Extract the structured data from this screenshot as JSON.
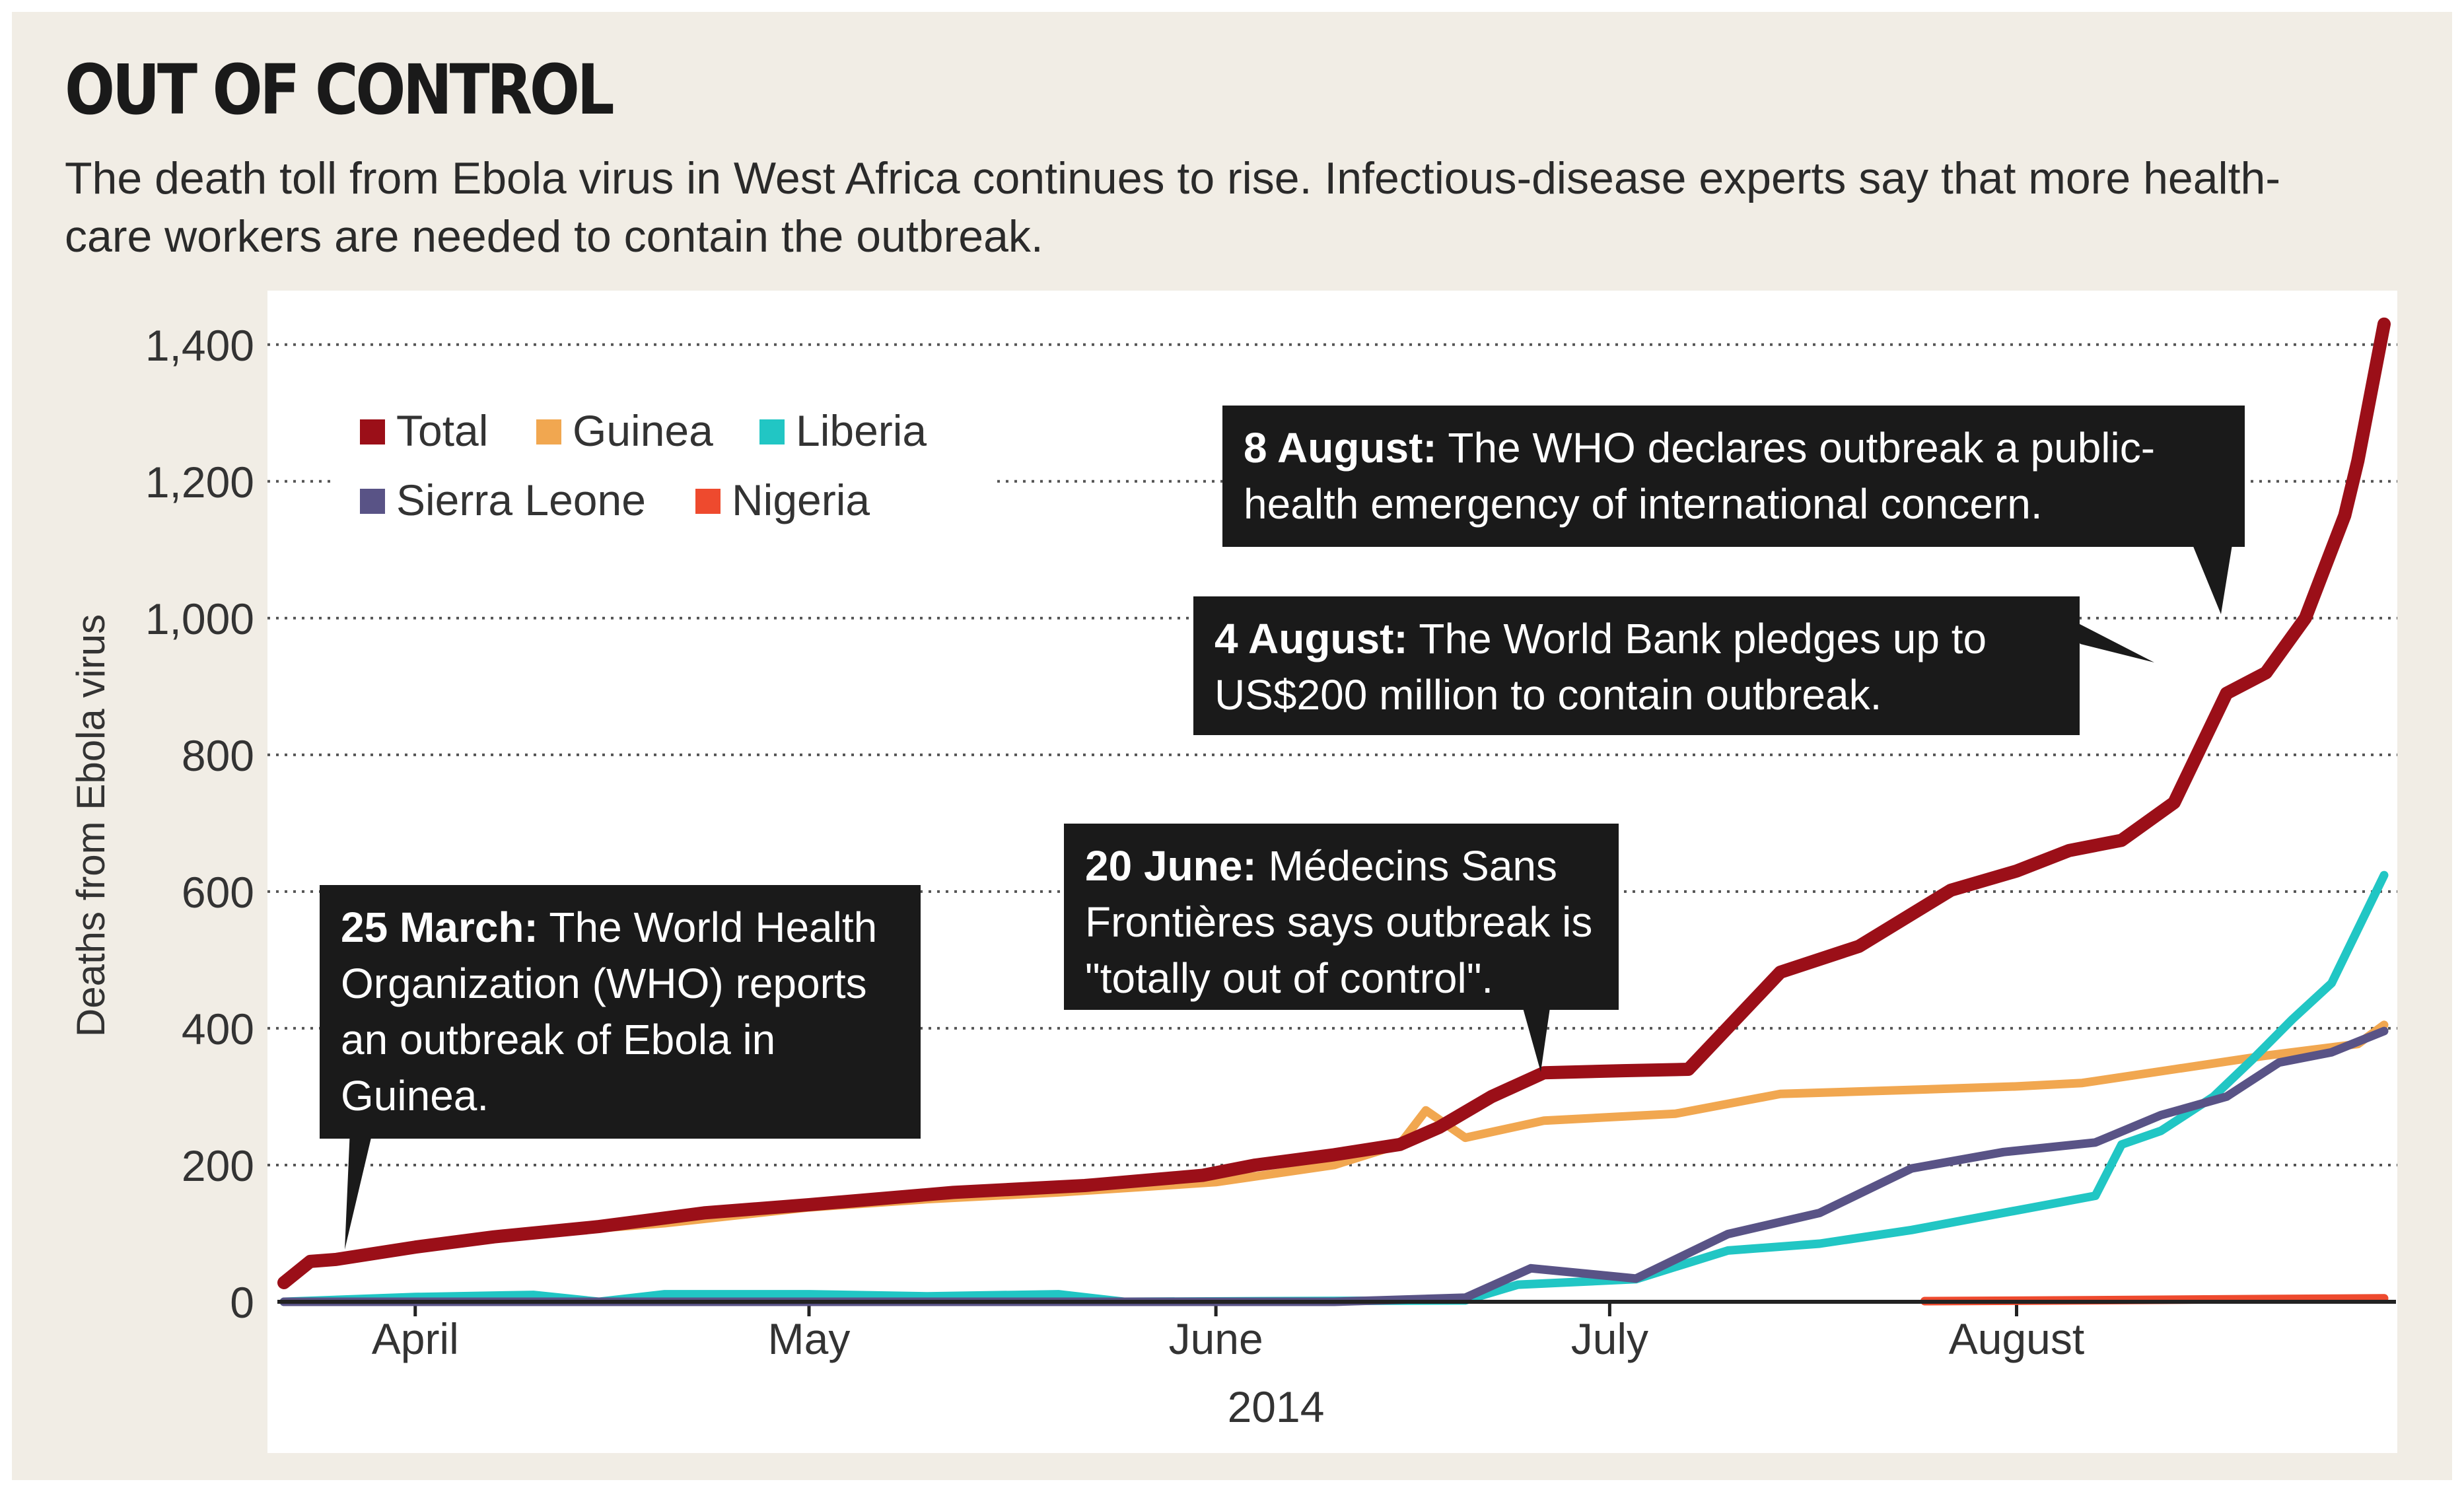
{
  "header": {
    "title": "OUT OF CONTROL",
    "subtitle": "The death toll from Ebola virus in West Africa continues to rise. Infectious-disease experts say that more health-care workers are needed to contain the outbreak."
  },
  "annotations": [
    {
      "date_label": "25 March:",
      "text": "The World Health Organization (WHO) reports an outbreak of Ebola in Guinea."
    },
    {
      "date_label": "20 June:",
      "text": "Médecins Sans Frontières says outbreak is \"totally out of control\"."
    },
    {
      "date_label": "4 August:",
      "text": "The World Bank pledges up to US$200 million to contain outbreak."
    },
    {
      "date_label": "8 August:",
      "text": "The WHO declares outbreak a public-health emergency of international concern."
    }
  ],
  "chart_data": {
    "type": "line",
    "title": "OUT OF CONTROL",
    "ylabel": "Deaths from Ebola virus",
    "xlabel": "2014",
    "ylim": [
      0,
      1450
    ],
    "xlim": [
      "2014-03-22",
      "2014-08-29"
    ],
    "yticks": [
      0,
      200,
      400,
      600,
      800,
      1000,
      1200,
      1400
    ],
    "ytick_labels": [
      "0",
      "200",
      "400",
      "600",
      "800",
      "1,000",
      "1,200",
      "1,400"
    ],
    "xticks": [
      "2014-04-01",
      "2014-05-01",
      "2014-06-01",
      "2014-07-01",
      "2014-08-01"
    ],
    "xtick_labels": [
      "April",
      "May",
      "June",
      "July",
      "August"
    ],
    "grid": "horizontal dotted",
    "legend_placement": "top-left",
    "series": [
      {
        "name": "Total",
        "color": "#9b0f18",
        "points": [
          [
            "2014-03-22",
            28
          ],
          [
            "2014-03-24",
            59
          ],
          [
            "2014-03-26",
            62
          ],
          [
            "2014-04-01",
            80
          ],
          [
            "2014-04-07",
            95
          ],
          [
            "2014-04-15",
            110
          ],
          [
            "2014-04-23",
            130
          ],
          [
            "2014-05-01",
            142
          ],
          [
            "2014-05-12",
            160
          ],
          [
            "2014-05-22",
            170
          ],
          [
            "2014-05-31",
            185
          ],
          [
            "2014-06-04",
            200
          ],
          [
            "2014-06-10",
            215
          ],
          [
            "2014-06-15",
            230
          ],
          [
            "2014-06-18",
            255
          ],
          [
            "2014-06-22",
            300
          ],
          [
            "2014-06-26",
            335
          ],
          [
            "2014-07-02",
            338
          ],
          [
            "2014-07-07",
            340
          ],
          [
            "2014-07-14",
            482
          ],
          [
            "2014-07-20",
            520
          ],
          [
            "2014-07-27",
            602
          ],
          [
            "2014-08-01",
            630
          ],
          [
            "2014-08-05",
            660
          ],
          [
            "2014-08-09",
            675
          ],
          [
            "2014-08-13",
            730
          ],
          [
            "2014-08-17",
            890
          ],
          [
            "2014-08-20",
            920
          ],
          [
            "2014-08-23",
            1000
          ],
          [
            "2014-08-26",
            1150
          ],
          [
            "2014-08-27",
            1230
          ],
          [
            "2014-08-29",
            1430
          ]
        ]
      },
      {
        "name": "Guinea",
        "color": "#f1a750",
        "points": [
          [
            "2014-03-22",
            28
          ],
          [
            "2014-03-24",
            59
          ],
          [
            "2014-04-01",
            80
          ],
          [
            "2014-04-10",
            100
          ],
          [
            "2014-04-20",
            115
          ],
          [
            "2014-05-01",
            138
          ],
          [
            "2014-05-10",
            150
          ],
          [
            "2014-05-20",
            160
          ],
          [
            "2014-06-01",
            175
          ],
          [
            "2014-06-10",
            200
          ],
          [
            "2014-06-15",
            230
          ],
          [
            "2014-06-17",
            280
          ],
          [
            "2014-06-20",
            240
          ],
          [
            "2014-06-26",
            265
          ],
          [
            "2014-07-06",
            275
          ],
          [
            "2014-07-14",
            304
          ],
          [
            "2014-07-24",
            310
          ],
          [
            "2014-08-01",
            315
          ],
          [
            "2014-08-06",
            320
          ],
          [
            "2014-08-13",
            340
          ],
          [
            "2014-08-20",
            360
          ],
          [
            "2014-08-27",
            377
          ],
          [
            "2014-08-29",
            405
          ]
        ]
      },
      {
        "name": "Liberia",
        "color": "#21c6c4",
        "points": [
          [
            "2014-03-22",
            0
          ],
          [
            "2014-04-01",
            7
          ],
          [
            "2014-04-10",
            10
          ],
          [
            "2014-04-15",
            0
          ],
          [
            "2014-04-20",
            11
          ],
          [
            "2014-05-01",
            11
          ],
          [
            "2014-05-10",
            8
          ],
          [
            "2014-05-20",
            11
          ],
          [
            "2014-05-25",
            0
          ],
          [
            "2014-06-20",
            2
          ],
          [
            "2014-06-24",
            25
          ],
          [
            "2014-07-03",
            33
          ],
          [
            "2014-07-10",
            75
          ],
          [
            "2014-07-17",
            85
          ],
          [
            "2014-07-24",
            105
          ],
          [
            "2014-07-31",
            130
          ],
          [
            "2014-08-07",
            155
          ],
          [
            "2014-08-09",
            230
          ],
          [
            "2014-08-12",
            250
          ],
          [
            "2014-08-16",
            300
          ],
          [
            "2014-08-19",
            355
          ],
          [
            "2014-08-22",
            413
          ],
          [
            "2014-08-25",
            466
          ],
          [
            "2014-08-29",
            624
          ]
        ]
      },
      {
        "name": "Sierra Leone",
        "color": "#595386",
        "points": [
          [
            "2014-03-22",
            0
          ],
          [
            "2014-06-10",
            0
          ],
          [
            "2014-06-20",
            6
          ],
          [
            "2014-06-25",
            49
          ],
          [
            "2014-07-03",
            34
          ],
          [
            "2014-07-10",
            99
          ],
          [
            "2014-07-17",
            130
          ],
          [
            "2014-07-24",
            195
          ],
          [
            "2014-07-31",
            219
          ],
          [
            "2014-08-07",
            233
          ],
          [
            "2014-08-12",
            273
          ],
          [
            "2014-08-17",
            300
          ],
          [
            "2014-08-21",
            350
          ],
          [
            "2014-08-25",
            365
          ],
          [
            "2014-08-29",
            396
          ]
        ]
      },
      {
        "name": "Nigeria",
        "color": "#ee4a2e",
        "points": [
          [
            "2014-07-25",
            1
          ],
          [
            "2014-08-05",
            2
          ],
          [
            "2014-08-20",
            4
          ],
          [
            "2014-08-29",
            5
          ]
        ]
      }
    ]
  }
}
